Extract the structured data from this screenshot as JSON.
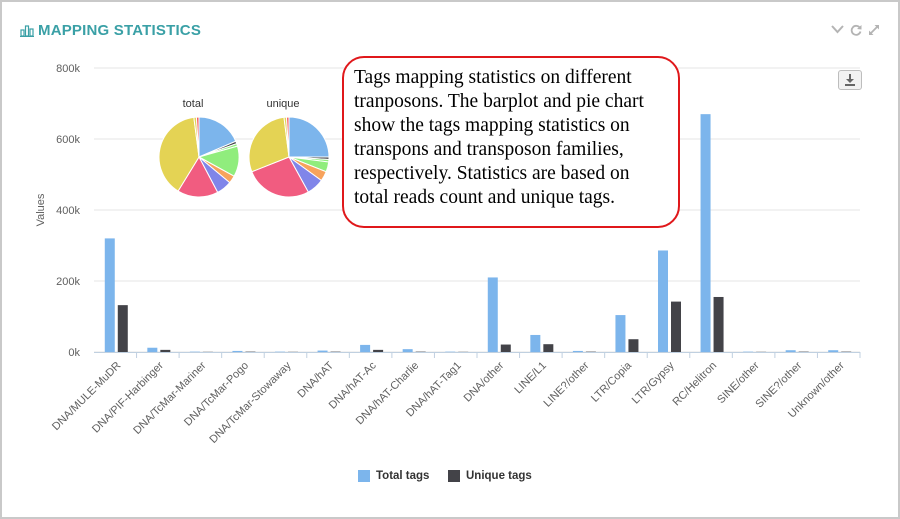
{
  "panel": {
    "title": "MAPPING STATISTICS",
    "title_icon": "bar-chart-icon",
    "controls": [
      "chevron-down-icon",
      "refresh-icon",
      "expand-icon"
    ],
    "export_icon": "download-icon"
  },
  "callout": {
    "lines": [
      "Tags mapping statistics on different",
      "tranposons. The barplot and pie chart",
      "show the tags mapping statistics on",
      "transpons and  transposon families,",
      "respectively. Statistics are based on",
      "total reads count and unique tags."
    ]
  },
  "colors": {
    "total": "#7cb5ec",
    "unique": "#434348",
    "accent": "#3aa0a6",
    "callout_border": "#e0181b"
  },
  "chart_data": [
    {
      "type": "bar",
      "title": "",
      "xlabel": "",
      "ylabel": "Values",
      "ylim": [
        0,
        800000
      ],
      "yticks": [
        0,
        200000,
        400000,
        600000,
        800000
      ],
      "ytick_labels": [
        "0k",
        "200k",
        "400k",
        "600k",
        "800k"
      ],
      "grid": true,
      "legend_position": "bottom-center",
      "categories": [
        "DNA/MULE-MuDR",
        "DNA/PIF-Harbinger",
        "DNA/TcMar-Mariner",
        "DNA/TcMar-Pogo",
        "DNA/TcMar-Stowaway",
        "DNA/hAT",
        "DNA/hAT-Ac",
        "DNA/hAT-Charlie",
        "DNA/hAT-Tag1",
        "DNA/other",
        "LINE/L1",
        "LINE?/other",
        "LTR/Copia",
        "LTR/Gypsy",
        "RC/Helitron",
        "SINE/other",
        "SINE?/other",
        "Unknown/other"
      ],
      "series": [
        {
          "name": "Total tags",
          "values": [
            320000,
            12000,
            1000,
            3000,
            1000,
            4000,
            20000,
            8000,
            1000,
            210000,
            48000,
            3000,
            104000,
            286000,
            670000,
            1000,
            5000,
            5000
          ]
        },
        {
          "name": "Unique tags",
          "values": [
            132000,
            6000,
            500,
            1000,
            500,
            1000,
            6000,
            1000,
            500,
            21000,
            22000,
            1000,
            36000,
            142000,
            155000,
            500,
            1000,
            1000
          ]
        }
      ]
    },
    {
      "type": "pie",
      "title": "total",
      "labels": [
        "DNA/MULE-MuDR",
        "DNA/PIF-Harbinger",
        "DNA/hAT-Ac",
        "DNA/other",
        "LINE/L1",
        "LTR/Copia",
        "LTR/Gypsy",
        "RC/Helitron",
        "SINE?/other",
        "Unknown/other"
      ],
      "values": [
        18,
        1,
        1,
        12,
        3,
        6,
        16,
        38,
        1,
        1
      ],
      "colors": [
        "#7cb5ec",
        "#434348",
        "#90ed7d",
        "#90ed7d",
        "#f7a35c",
        "#8085e9",
        "#f15c80",
        "#e4d354",
        "#e4d354",
        "#f45b5b"
      ]
    },
    {
      "type": "pie",
      "title": "unique",
      "labels": [
        "DNA/MULE-MuDR",
        "DNA/PIF-Harbinger",
        "DNA/hAT-Ac",
        "DNA/other",
        "LINE/L1",
        "LTR/Copia",
        "LTR/Gypsy",
        "RC/Helitron",
        "SINE?/other",
        "Unknown/other"
      ],
      "values": [
        25,
        1,
        1,
        4,
        4,
        7,
        27,
        29,
        1,
        1
      ],
      "colors": [
        "#7cb5ec",
        "#434348",
        "#90ed7d",
        "#90ed7d",
        "#f7a35c",
        "#8085e9",
        "#f15c80",
        "#e4d354",
        "#e4d354",
        "#f45b5b"
      ]
    }
  ]
}
